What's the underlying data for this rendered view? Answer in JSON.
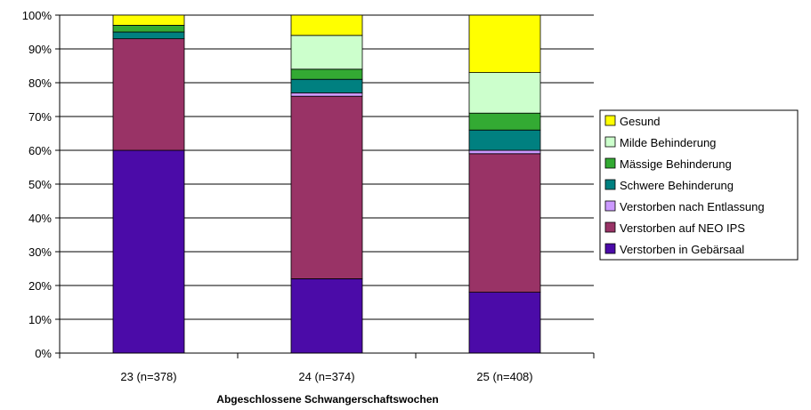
{
  "chart_data": {
    "type": "bar",
    "stacked": true,
    "percent": true,
    "title": "",
    "xlabel": "Abgeschlossene Schwangerschaftswochen",
    "ylabel": "",
    "ylim": [
      0,
      100
    ],
    "yticks": [
      "0%",
      "10%",
      "20%",
      "30%",
      "40%",
      "50%",
      "60%",
      "70%",
      "80%",
      "90%",
      "100%"
    ],
    "grid": true,
    "legend_position": "right",
    "categories": [
      "23 (n=378)",
      "24 (n=374)",
      "25 (n=408)"
    ],
    "series": [
      {
        "name": "Verstorben in Gebärsaal",
        "color": "#4B0BA8",
        "values": [
          60,
          22,
          18
        ]
      },
      {
        "name": "Verstorben auf NEO IPS",
        "color": "#993366",
        "values": [
          33,
          54,
          41
        ]
      },
      {
        "name": "Verstorben nach Entlassung",
        "color": "#CC99FF",
        "values": [
          0,
          1,
          1
        ]
      },
      {
        "name": "Schwere Behinderung",
        "color": "#008080",
        "values": [
          2,
          4,
          6
        ]
      },
      {
        "name": "Mässige Behinderung",
        "color": "#33AA33",
        "values": [
          2,
          3,
          5
        ]
      },
      {
        "name": "Milde Behinderung",
        "color": "#CCFFCC",
        "values": [
          0,
          10,
          12
        ]
      },
      {
        "name": "Gesund",
        "color": "#FFFF00",
        "values": [
          3,
          6,
          17
        ]
      }
    ]
  }
}
